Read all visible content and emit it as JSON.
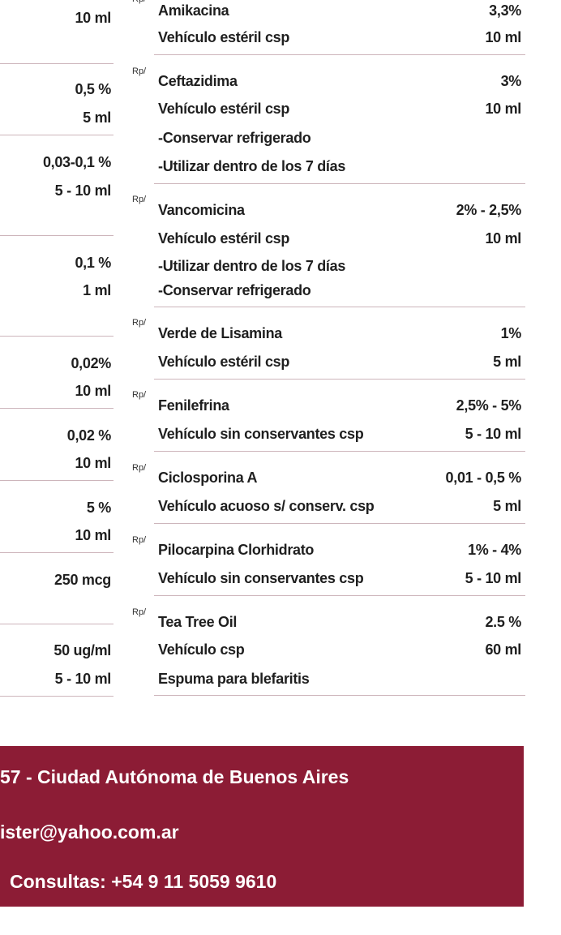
{
  "left_column": {
    "values": [
      "10 ml",
      "0,5 %",
      "5 ml",
      "0,03-0,1 %",
      "5 - 10 ml",
      "0,1 %",
      "1 ml",
      "0,02%",
      "10 ml",
      "0,02 %",
      "10 ml",
      "5 %",
      "10 ml",
      "250 mcg",
      "50 ug/ml",
      "5 - 10 ml"
    ]
  },
  "right_column": {
    "blocks": [
      {
        "rp": "Rp/",
        "lines": [
          {
            "name": "Amikacina",
            "value": "3,3%"
          },
          {
            "name": "Vehículo estéril csp",
            "value": "10 ml"
          }
        ]
      },
      {
        "rp": "Rp/",
        "lines": [
          {
            "name": "Ceftazidima",
            "value": "3%"
          },
          {
            "name": "Vehículo estéril csp",
            "value": "10 ml"
          },
          {
            "name": "-Conservar refrigerado"
          },
          {
            "name": "-Utilizar dentro de los 7 días"
          }
        ]
      },
      {
        "rp": "Rp/",
        "lines": [
          {
            "name": "Vancomicina",
            "value": "2% - 2,5%"
          },
          {
            "name": "Vehículo estéril csp",
            "value": "10 ml"
          },
          {
            "name": "-Utilizar dentro de los 7 días"
          },
          {
            "name": "-Conservar refrigerado"
          }
        ]
      },
      {
        "rp": "Rp/",
        "lines": [
          {
            "name": "Verde de Lisamina",
            "value": "1%"
          },
          {
            "name": "Vehículo estéril csp",
            "value": "5 ml"
          }
        ]
      },
      {
        "rp": "Rp/",
        "lines": [
          {
            "name": "Fenilefrina",
            "value": "2,5% - 5%"
          },
          {
            "name": "Vehículo sin conservantes csp",
            "value": "5 - 10 ml"
          }
        ]
      },
      {
        "rp": "Rp/",
        "lines": [
          {
            "name": "Ciclosporina A",
            "value": "0,01 - 0,5 %"
          },
          {
            "name": "Vehículo acuoso s/ conserv. csp",
            "value": "5 ml"
          }
        ]
      },
      {
        "rp": "Rp/",
        "lines": [
          {
            "name": "Pilocarpina Clorhidrato",
            "value": "1% - 4%"
          },
          {
            "name": "Vehículo sin conservantes csp",
            "value": "5 - 10 ml"
          }
        ]
      },
      {
        "rp": "Rp/",
        "lines": [
          {
            "name": "Tea Tree Oil",
            "value": "2.5 %"
          },
          {
            "name": "Vehículo csp",
            "value": "60 ml"
          },
          {
            "name": "Espuma para blefaritis"
          }
        ]
      }
    ]
  },
  "footer": {
    "address": "57 - Ciudad Autónoma de Buenos Aires",
    "email": "ister@yahoo.com.ar",
    "phone": "Consultas: +54 9 11 5059 9610"
  }
}
